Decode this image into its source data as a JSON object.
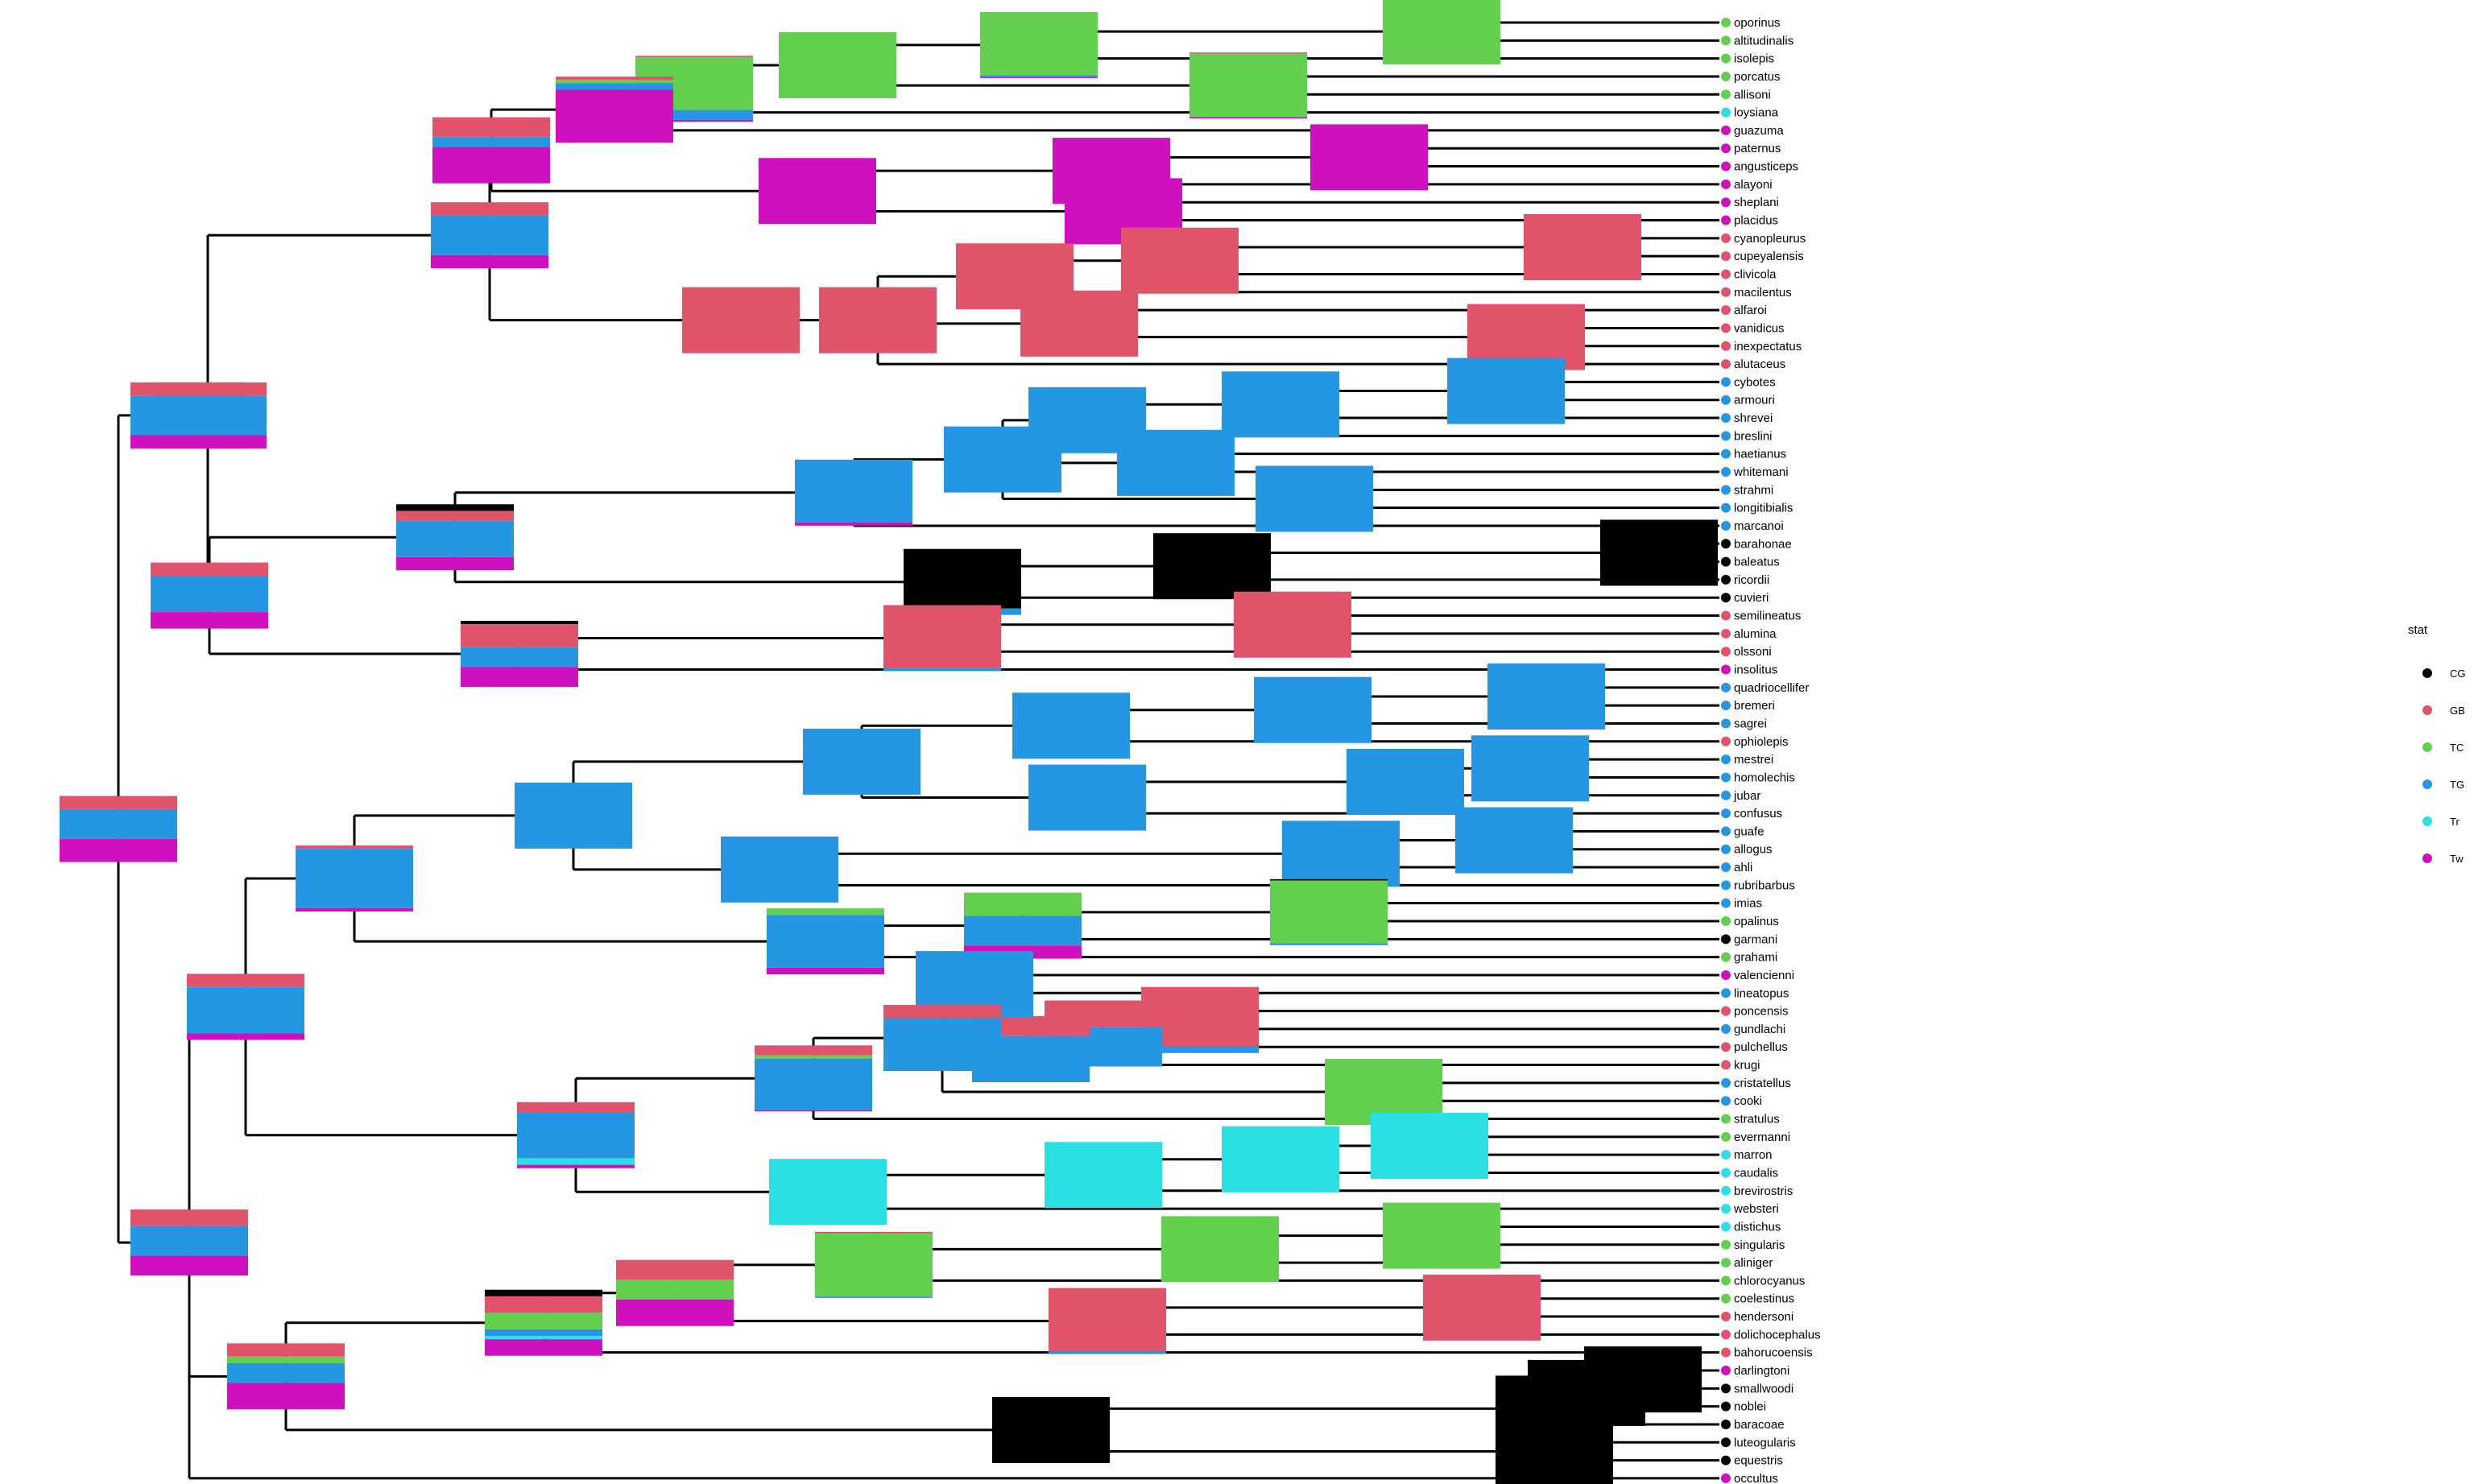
{
  "palette": {
    "CG": "#000000",
    "GB": "#E0536A",
    "TC": "#62CF4E",
    "TG": "#2596E3",
    "Tr": "#2BE0E3",
    "Tw": "#CE10BE"
  },
  "legend": {
    "title": "stat",
    "items": [
      {
        "key": "CG",
        "label": "CG"
      },
      {
        "key": "GB",
        "label": "GB"
      },
      {
        "key": "TC",
        "label": "TC"
      },
      {
        "key": "TG",
        "label": "TG"
      },
      {
        "key": "Tr",
        "label": "Tr"
      },
      {
        "key": "Tw",
        "label": "Tw"
      }
    ]
  },
  "tips": [
    {
      "name": "oporinus",
      "state": "TC"
    },
    {
      "name": "altitudinalis",
      "state": "TC"
    },
    {
      "name": "isolepis",
      "state": "TC"
    },
    {
      "name": "porcatus",
      "state": "TC"
    },
    {
      "name": "allisoni",
      "state": "TC"
    },
    {
      "name": "loysiana",
      "state": "Tr"
    },
    {
      "name": "guazuma",
      "state": "Tw"
    },
    {
      "name": "paternus",
      "state": "Tw"
    },
    {
      "name": "angusticeps",
      "state": "Tw"
    },
    {
      "name": "alayoni",
      "state": "Tw"
    },
    {
      "name": "sheplani",
      "state": "Tw"
    },
    {
      "name": "placidus",
      "state": "Tw"
    },
    {
      "name": "cyanopleurus",
      "state": "GB"
    },
    {
      "name": "cupeyalensis",
      "state": "GB"
    },
    {
      "name": "clivicola",
      "state": "GB"
    },
    {
      "name": "macilentus",
      "state": "GB"
    },
    {
      "name": "alfaroi",
      "state": "GB"
    },
    {
      "name": "vanidicus",
      "state": "GB"
    },
    {
      "name": "inexpectatus",
      "state": "GB"
    },
    {
      "name": "alutaceus",
      "state": "GB"
    },
    {
      "name": "cybotes",
      "state": "TG"
    },
    {
      "name": "armouri",
      "state": "TG"
    },
    {
      "name": "shrevei",
      "state": "TG"
    },
    {
      "name": "breslini",
      "state": "TG"
    },
    {
      "name": "haetianus",
      "state": "TG"
    },
    {
      "name": "whitemani",
      "state": "TG"
    },
    {
      "name": "strahmi",
      "state": "TG"
    },
    {
      "name": "longitibialis",
      "state": "TG"
    },
    {
      "name": "marcanoi",
      "state": "TG"
    },
    {
      "name": "barahonae",
      "state": "CG"
    },
    {
      "name": "baleatus",
      "state": "CG"
    },
    {
      "name": "ricordii",
      "state": "CG"
    },
    {
      "name": "cuvieri",
      "state": "CG"
    },
    {
      "name": "semilineatus",
      "state": "GB"
    },
    {
      "name": "alumina",
      "state": "GB"
    },
    {
      "name": "olssoni",
      "state": "GB"
    },
    {
      "name": "insolitus",
      "state": "Tw"
    },
    {
      "name": "quadriocellifer",
      "state": "TG"
    },
    {
      "name": "bremeri",
      "state": "TG"
    },
    {
      "name": "sagrei",
      "state": "TG"
    },
    {
      "name": "ophiolepis",
      "state": "GB"
    },
    {
      "name": "mestrei",
      "state": "TG"
    },
    {
      "name": "homolechis",
      "state": "TG"
    },
    {
      "name": "jubar",
      "state": "TG"
    },
    {
      "name": "confusus",
      "state": "TG"
    },
    {
      "name": "guafe",
      "state": "TG"
    },
    {
      "name": "allogus",
      "state": "TG"
    },
    {
      "name": "ahli",
      "state": "TG"
    },
    {
      "name": "rubribarbus",
      "state": "TG"
    },
    {
      "name": "imias",
      "state": "TG"
    },
    {
      "name": "opalinus",
      "state": "TC"
    },
    {
      "name": "garmani",
      "state": "CG"
    },
    {
      "name": "grahami",
      "state": "TC"
    },
    {
      "name": "valencienni",
      "state": "Tw"
    },
    {
      "name": "lineatopus",
      "state": "TG"
    },
    {
      "name": "poncensis",
      "state": "GB"
    },
    {
      "name": "gundlachi",
      "state": "TG"
    },
    {
      "name": "pulchellus",
      "state": "GB"
    },
    {
      "name": "krugi",
      "state": "GB"
    },
    {
      "name": "cristatellus",
      "state": "TG"
    },
    {
      "name": "cooki",
      "state": "TG"
    },
    {
      "name": "stratulus",
      "state": "TC"
    },
    {
      "name": "evermanni",
      "state": "TC"
    },
    {
      "name": "marron",
      "state": "Tr"
    },
    {
      "name": "caudalis",
      "state": "Tr"
    },
    {
      "name": "brevirostris",
      "state": "Tr"
    },
    {
      "name": "websteri",
      "state": "Tr"
    },
    {
      "name": "distichus",
      "state": "Tr"
    },
    {
      "name": "singularis",
      "state": "TC"
    },
    {
      "name": "aliniger",
      "state": "TC"
    },
    {
      "name": "chlorocyanus",
      "state": "TC"
    },
    {
      "name": "coelestinus",
      "state": "TC"
    },
    {
      "name": "hendersoni",
      "state": "GB"
    },
    {
      "name": "dolichocephalus",
      "state": "GB"
    },
    {
      "name": "bahorucoensis",
      "state": "GB"
    },
    {
      "name": "darlingtoni",
      "state": "Tw"
    },
    {
      "name": "smallwoodi",
      "state": "CG"
    },
    {
      "name": "noblei",
      "state": "CG"
    },
    {
      "name": "baracoae",
      "state": "CG"
    },
    {
      "name": "luteogularis",
      "state": "CG"
    },
    {
      "name": "equestris",
      "state": "CG"
    },
    {
      "name": "occultus",
      "state": "Tw"
    }
  ],
  "node_pies": [
    {
      "id": "root",
      "state": [
        0,
        0.2,
        0,
        0.45,
        0,
        0.35
      ]
    },
    {
      "id": "major_top",
      "state": [
        0,
        0.2,
        0,
        0.6,
        0,
        0.2
      ]
    },
    {
      "id": "crown_upper",
      "state": [
        0,
        0.2,
        0,
        0.6,
        0,
        0.2
      ]
    },
    {
      "id": "clade_A",
      "state": [
        0,
        0.2,
        0,
        0.6,
        0,
        0.2
      ]
    },
    {
      "id": "clade_A1",
      "state": [
        0,
        0.3,
        0,
        0.15,
        0,
        0.55
      ]
    },
    {
      "id": "clade_A1a",
      "state": [
        0,
        0.05,
        0.05,
        0.1,
        0,
        0.8
      ]
    },
    {
      "id": "clade_A1b",
      "state": [
        0,
        0.08,
        0.04,
        0.04,
        0,
        0.84
      ]
    },
    {
      "id": "clade_A1c",
      "state": [
        0,
        0.05,
        0.05,
        0.05,
        0.05,
        0.8
      ]
    },
    {
      "id": "clade_TC1",
      "state": [
        0,
        0.02,
        0.8,
        0.15,
        0,
        0.03
      ]
    },
    {
      "id": "clade_TC2",
      "state": [
        0,
        0,
        1,
        0,
        0,
        0
      ]
    },
    {
      "id": "clade_TC3",
      "state": [
        0,
        0,
        0.96,
        0.02,
        0,
        0.02
      ]
    },
    {
      "id": "clade_TC4",
      "state": [
        0,
        0,
        1,
        0,
        0,
        0
      ]
    },
    {
      "id": "clade_TC5",
      "state": [
        0,
        0.02,
        0.96,
        0,
        0,
        0.02
      ]
    },
    {
      "id": "clade_Tw1",
      "state": [
        0,
        0,
        0,
        0,
        0,
        1
      ]
    },
    {
      "id": "clade_Tw2",
      "state": [
        0,
        0,
        0,
        0,
        0,
        1
      ]
    },
    {
      "id": "clade_Tw3",
      "state": [
        0,
        0,
        0,
        0,
        0,
        1
      ]
    },
    {
      "id": "clade_Tw4",
      "state": [
        0,
        0,
        0,
        0,
        0,
        1
      ]
    },
    {
      "id": "clade_GB1",
      "state": [
        0,
        1,
        0,
        0,
        0,
        0
      ]
    },
    {
      "id": "clade_GB2",
      "state": [
        0,
        1,
        0,
        0,
        0,
        0
      ]
    },
    {
      "id": "clade_GB3",
      "state": [
        0,
        1,
        0,
        0,
        0,
        0
      ]
    },
    {
      "id": "clade_GB4",
      "state": [
        0,
        1,
        0,
        0,
        0,
        0
      ]
    },
    {
      "id": "clade_GB5",
      "state": [
        0,
        1,
        0,
        0,
        0,
        0
      ]
    },
    {
      "id": "clade_GB6",
      "state": [
        0,
        1,
        0,
        0,
        0,
        0
      ]
    },
    {
      "id": "clade_GB7",
      "state": [
        0,
        1,
        0,
        0,
        0,
        0
      ]
    },
    {
      "id": "clade_B",
      "state": [
        0,
        0.2,
        0,
        0.55,
        0,
        0.25
      ]
    },
    {
      "id": "clade_B1",
      "state": [
        0.1,
        0.15,
        0,
        0.55,
        0,
        0.2
      ]
    },
    {
      "id": "clade_TG1",
      "state": [
        0,
        0,
        0,
        0.95,
        0,
        0.05
      ]
    },
    {
      "id": "clade_TG2",
      "state": [
        0,
        0,
        0,
        1,
        0,
        0
      ]
    },
    {
      "id": "clade_TG3",
      "state": [
        0,
        0,
        0,
        1,
        0,
        0
      ]
    },
    {
      "id": "clade_TG4",
      "state": [
        0,
        0,
        0,
        1,
        0,
        0
      ]
    },
    {
      "id": "clade_TG5",
      "state": [
        0,
        0,
        0,
        1,
        0,
        0
      ]
    },
    {
      "id": "clade_TG6",
      "state": [
        0,
        0,
        0,
        1,
        0,
        0
      ]
    },
    {
      "id": "clade_TG7",
      "state": [
        0,
        0,
        0,
        1,
        0,
        0
      ]
    },
    {
      "id": "clade_CG1",
      "state": [
        0.9,
        0,
        0,
        0.1,
        0,
        0
      ]
    },
    {
      "id": "clade_CG2",
      "state": [
        1,
        0,
        0,
        0,
        0,
        0
      ]
    },
    {
      "id": "clade_CG3",
      "state": [
        1,
        0,
        0,
        0,
        0,
        0
      ]
    },
    {
      "id": "clade_B2",
      "state": [
        0.05,
        0.35,
        0,
        0.3,
        0,
        0.3
      ]
    },
    {
      "id": "clade_GB8",
      "state": [
        0,
        0.95,
        0,
        0.05,
        0,
        0
      ]
    },
    {
      "id": "clade_GB9",
      "state": [
        0,
        1,
        0,
        0,
        0,
        0
      ]
    },
    {
      "id": "crown_lower",
      "state": [
        0,
        0.25,
        0,
        0.45,
        0,
        0.3
      ]
    },
    {
      "id": "clade_C",
      "state": [
        0,
        0.2,
        0,
        0.7,
        0,
        0.1
      ]
    },
    {
      "id": "clade_C1",
      "state": [
        0,
        0.05,
        0,
        0.9,
        0,
        0.05
      ]
    },
    {
      "id": "clade_TG8",
      "state": [
        0,
        0,
        0,
        1,
        0,
        0
      ]
    },
    {
      "id": "clade_TG9",
      "state": [
        0,
        0,
        0,
        1,
        0,
        0
      ]
    },
    {
      "id": "clade_TG10",
      "state": [
        0,
        0,
        0,
        1,
        0,
        0
      ]
    },
    {
      "id": "clade_TG11",
      "state": [
        0,
        0,
        0,
        1,
        0,
        0
      ]
    },
    {
      "id": "clade_TG12",
      "state": [
        0,
        0,
        0,
        1,
        0,
        0
      ]
    },
    {
      "id": "clade_TG13",
      "state": [
        0,
        0,
        0,
        1,
        0,
        0
      ]
    },
    {
      "id": "clade_TG14",
      "state": [
        0,
        0,
        0,
        1,
        0,
        0
      ]
    },
    {
      "id": "clade_TG15",
      "state": [
        0,
        0,
        0,
        1,
        0,
        0
      ]
    },
    {
      "id": "clade_TG16",
      "state": [
        0,
        0,
        0,
        1,
        0,
        0
      ]
    },
    {
      "id": "clade_TG17",
      "state": [
        0,
        0,
        0,
        1,
        0,
        0
      ]
    },
    {
      "id": "clade_TG18",
      "state": [
        0,
        0,
        0,
        1,
        0,
        0
      ]
    },
    {
      "id": "clade_C2",
      "state": [
        0,
        0,
        0.1,
        0.8,
        0,
        0.1
      ]
    },
    {
      "id": "clade_C3",
      "state": [
        0,
        0,
        0.35,
        0.45,
        0,
        0.2
      ]
    },
    {
      "id": "clade_TC6",
      "state": [
        0.02,
        0,
        0.95,
        0.03,
        0,
        0
      ]
    },
    {
      "id": "clade_TC7",
      "state": [
        0,
        0,
        0.96,
        0.04,
        0,
        0
      ]
    },
    {
      "id": "clade_D",
      "state": [
        0,
        0.15,
        0,
        0.7,
        0.1,
        0.05
      ]
    },
    {
      "id": "clade_D1",
      "state": [
        0,
        0.15,
        0.05,
        0.78,
        0,
        0.02
      ]
    },
    {
      "id": "clade_D2",
      "state": [
        0,
        0.2,
        0,
        0.8,
        0,
        0
      ]
    },
    {
      "id": "clade_D3",
      "state": [
        0,
        0.3,
        0,
        0.7,
        0,
        0
      ]
    },
    {
      "id": "clade_D4",
      "state": [
        0,
        0.4,
        0,
        0.6,
        0,
        0
      ]
    },
    {
      "id": "clade_D5",
      "state": [
        0,
        0.9,
        0,
        0.1,
        0,
        0
      ]
    },
    {
      "id": "clade_TG19",
      "state": [
        0,
        0,
        0,
        1,
        0,
        0
      ]
    },
    {
      "id": "clade_TC8",
      "state": [
        0,
        0,
        1,
        0,
        0,
        0
      ]
    },
    {
      "id": "clade_Tr1",
      "state": [
        0,
        0,
        0,
        0,
        1,
        0
      ]
    },
    {
      "id": "clade_Tr2",
      "state": [
        0,
        0,
        0,
        0,
        1,
        0
      ]
    },
    {
      "id": "clade_Tr3",
      "state": [
        0,
        0,
        0,
        0,
        1,
        0
      ]
    },
    {
      "id": "clade_Tr4",
      "state": [
        0,
        0,
        0,
        0,
        1,
        0
      ]
    },
    {
      "id": "clade_E",
      "state": [
        0,
        0.2,
        0.1,
        0.3,
        0,
        0.4
      ]
    },
    {
      "id": "clade_E1",
      "state": [
        0.1,
        0.25,
        0.25,
        0.1,
        0.05,
        0.25
      ]
    },
    {
      "id": "clade_E2",
      "state": [
        0,
        0.3,
        0.3,
        0,
        0,
        0.4
      ]
    },
    {
      "id": "clade_E3",
      "state": [
        0,
        0.3,
        0.3,
        0,
        0,
        0.4
      ]
    },
    {
      "id": "clade_TC9",
      "state": [
        0,
        0.02,
        0.96,
        0.02,
        0,
        0
      ]
    },
    {
      "id": "clade_TC10",
      "state": [
        0,
        0,
        1,
        0,
        0,
        0
      ]
    },
    {
      "id": "clade_TC11",
      "state": [
        0,
        0,
        1,
        0,
        0,
        0
      ]
    },
    {
      "id": "clade_GB10",
      "state": [
        0,
        0.96,
        0,
        0.04,
        0,
        0
      ]
    },
    {
      "id": "clade_GB11",
      "state": [
        0,
        1,
        0,
        0,
        0,
        0
      ]
    },
    {
      "id": "clade_CG4",
      "state": [
        1,
        0,
        0,
        0,
        0,
        0
      ]
    },
    {
      "id": "clade_CG5",
      "state": [
        1,
        0,
        0,
        0,
        0,
        0
      ]
    },
    {
      "id": "clade_CG6",
      "state": [
        1,
        0,
        0,
        0,
        0,
        0
      ]
    },
    {
      "id": "clade_CG7",
      "state": [
        1,
        0,
        0,
        0,
        0,
        0
      ]
    },
    {
      "id": "clade_CG8",
      "state": [
        1,
        0,
        0,
        0,
        0,
        0
      ]
    }
  ]
}
